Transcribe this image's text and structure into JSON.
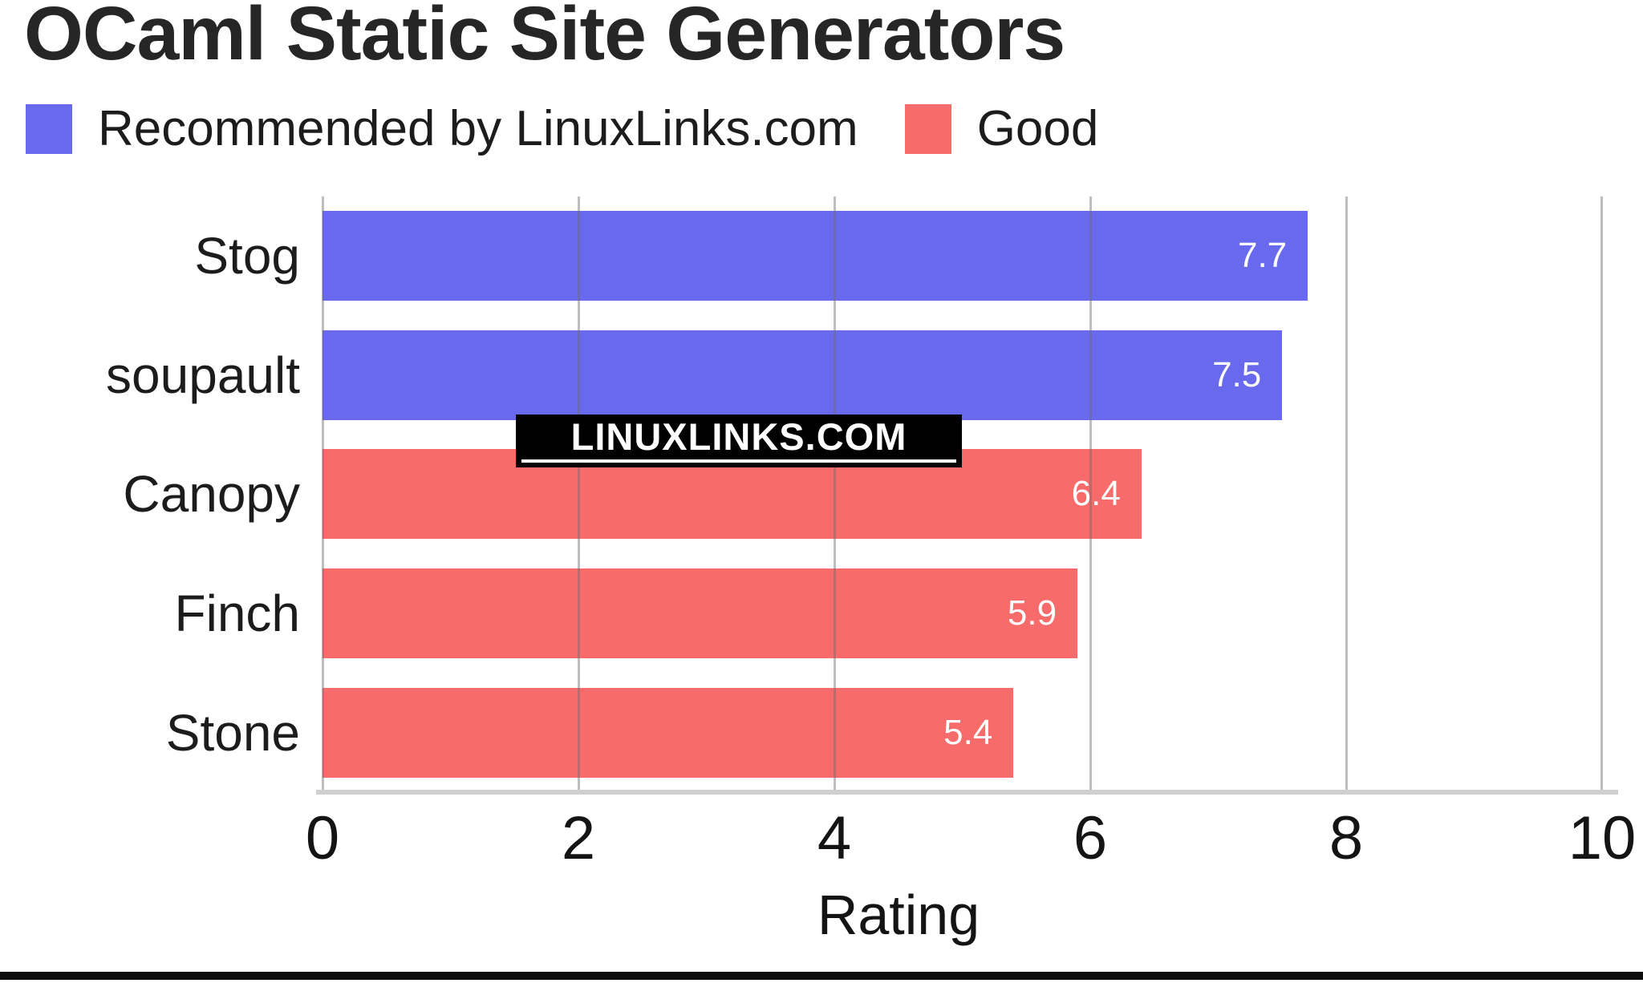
{
  "title": "OCaml Static Site Generators",
  "watermark": "LINUXLINKS.COM",
  "legend": [
    {
      "label": "Recommended by LinuxLinks.com",
      "color": "#6969ee"
    },
    {
      "label": "Good",
      "color": "#f76b6b"
    }
  ],
  "colors": {
    "recommended_blue": "#6969ee",
    "good_red": "#f76b6b",
    "gridline_gray": "#a8a8a8",
    "axis_line_gray": "#cfcfcf",
    "bottom_rule_black": "#0d0d0d",
    "value_label_white": "#ffffff"
  },
  "chart_data": {
    "type": "bar",
    "orientation": "horizontal",
    "title": "OCaml Static Site Generators",
    "categories": [
      "Stog",
      "soupault",
      "Canopy",
      "Finch",
      "Stone"
    ],
    "values": [
      7.7,
      7.5,
      6.4,
      5.9,
      5.4
    ],
    "series": [
      {
        "name": "Recommended by LinuxLinks.com",
        "color": "#6969ee",
        "members": [
          "Stog",
          "soupault"
        ]
      },
      {
        "name": "Good",
        "color": "#f76b6b",
        "members": [
          "Canopy",
          "Finch",
          "Stone"
        ]
      }
    ],
    "bars": [
      {
        "label": "Stog",
        "value": "7.7",
        "series": "Recommended by LinuxLinks.com",
        "color": "#6969ee"
      },
      {
        "label": "soupault",
        "value": "7.5",
        "series": "Recommended by LinuxLinks.com",
        "color": "#6969ee"
      },
      {
        "label": "Canopy",
        "value": "6.4",
        "series": "Good",
        "color": "#f76b6b"
      },
      {
        "label": "Finch",
        "value": "5.9",
        "series": "Good",
        "color": "#f76b6b"
      },
      {
        "label": "Stone",
        "value": "5.4",
        "series": "Good",
        "color": "#f76b6b"
      }
    ],
    "xlabel": "Rating",
    "ylabel": "",
    "xlim": [
      0,
      10
    ],
    "xticks": [
      "0",
      "2",
      "4",
      "6",
      "8",
      "10"
    ],
    "grid": true,
    "legend_position": "top"
  }
}
